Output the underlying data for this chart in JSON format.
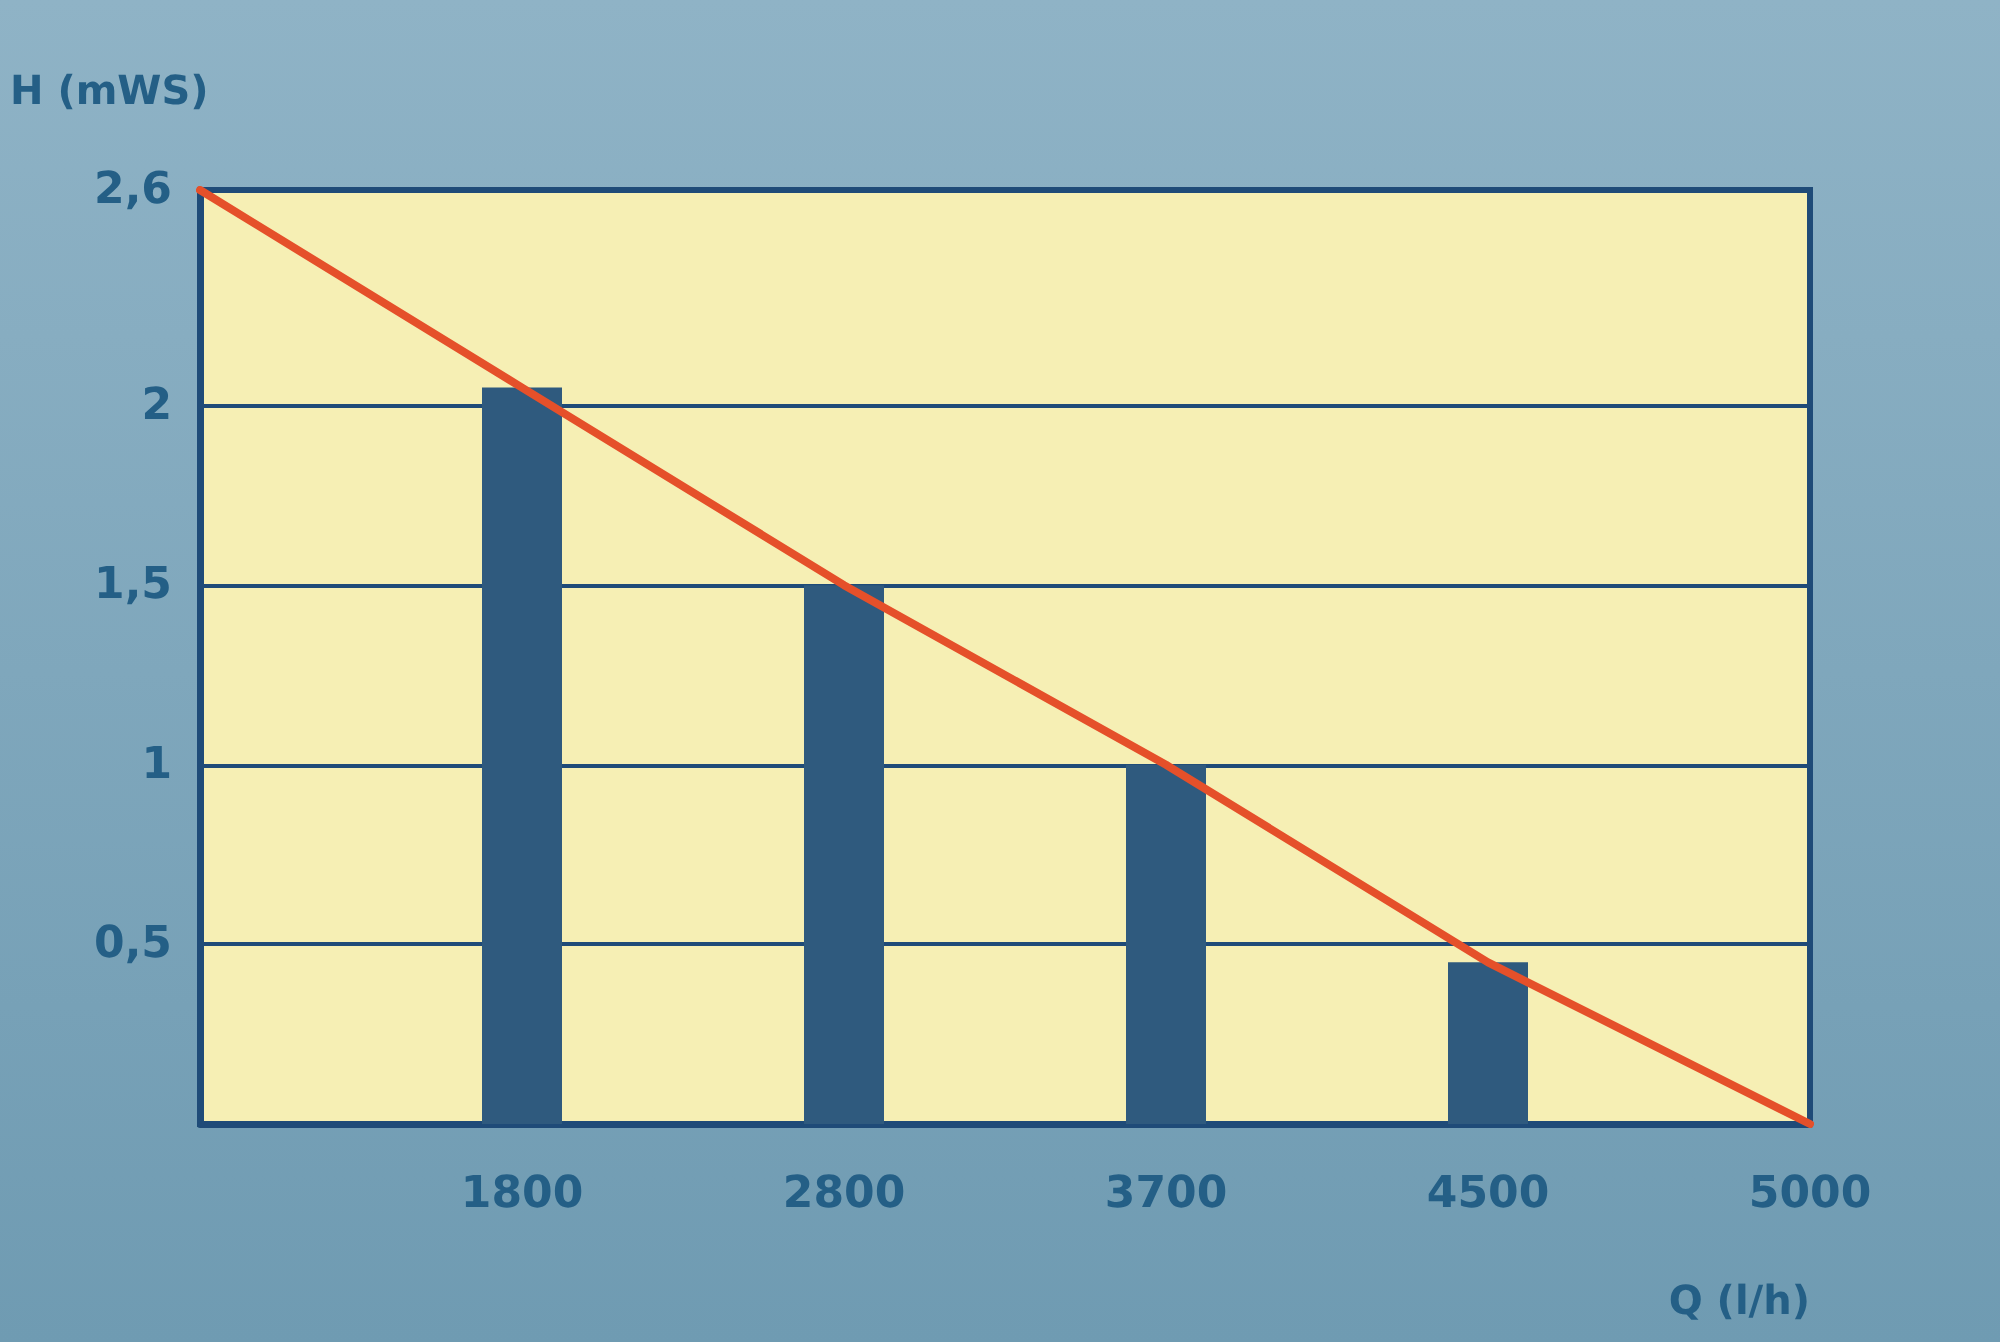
{
  "chart_data": {
    "type": "bar",
    "xlabel": "Q (l/h)",
    "ylabel": "H (mWS)",
    "categories": [
      null,
      "1800",
      "2800",
      "3700",
      "4500",
      "5000"
    ],
    "series": [
      {
        "color": "#2f5a7e",
        "values": [
          null,
          2.05,
          1.5,
          1.0,
          0.45,
          null
        ]
      },
      {
        "type": "line",
        "color": "#e5502a",
        "values": [
          2.6,
          2.05,
          1.5,
          1.0,
          0.45,
          0
        ]
      }
    ],
    "ylim": [
      0,
      2.6
    ],
    "yticks": [
      {
        "value": 0.5,
        "label": "0,5"
      },
      1,
      {
        "value": 1.5,
        "label": "1,5"
      },
      2,
      {
        "value": 2.6,
        "label": "2,6"
      }
    ],
    "grid": "y",
    "marker": "none",
    "line_style": "solid"
  }
}
